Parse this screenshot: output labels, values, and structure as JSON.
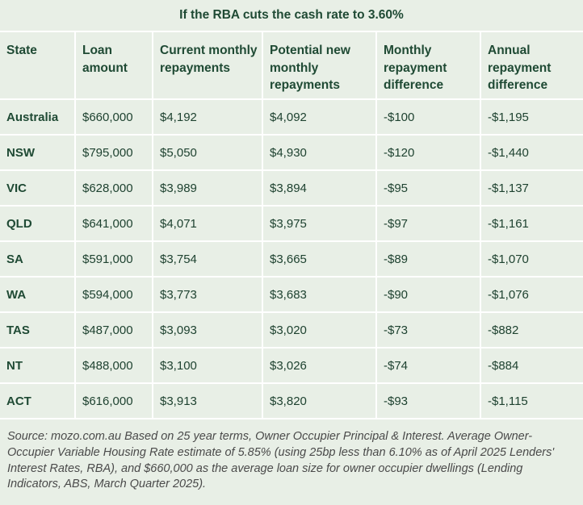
{
  "title": "If the RBA cuts the cash rate to 3.60%",
  "table": {
    "headers": [
      "State",
      "Loan amount",
      "Current monthly repayments",
      "Potential new monthly repayments",
      "Monthly repayment difference",
      "Annual repayment difference"
    ],
    "rows": [
      [
        "Australia",
        "$660,000",
        "$4,192",
        "$4,092",
        "-$100",
        "-$1,195"
      ],
      [
        "NSW",
        "$795,000",
        "$5,050",
        "$4,930",
        "-$120",
        "-$1,440"
      ],
      [
        "VIC",
        "$628,000",
        "$3,989",
        "$3,894",
        "-$95",
        "-$1,137"
      ],
      [
        "QLD",
        "$641,000",
        "$4,071",
        "$3,975",
        "-$97",
        "-$1,161"
      ],
      [
        "SA",
        "$591,000",
        "$3,754",
        "$3,665",
        "-$89",
        "-$1,070"
      ],
      [
        "WA",
        "$594,000",
        "$3,773",
        "$3,683",
        "-$90",
        "-$1,076"
      ],
      [
        "TAS",
        "$487,000",
        "$3,093",
        "$3,020",
        "-$73",
        "-$882"
      ],
      [
        "NT",
        "$488,000",
        "$3,100",
        "$3,026",
        "-$74",
        "-$884"
      ],
      [
        "ACT",
        "$616,000",
        "$3,913",
        "$3,820",
        "-$93",
        "-$1,115"
      ]
    ]
  },
  "source": "Source: mozo.com.au Based on 25 year terms, Owner Occupier Principal & Interest. Average Owner-Occupier Variable Housing Rate estimate of 5.85% (using 25bp less than 6.10% as of April 2025 Lenders' Interest Rates, RBA), and $660,000 as the average loan size for owner occupier dwellings (Lending Indicators, ABS, March Quarter 2025).",
  "colors": {
    "background": "#e8efe6",
    "text": "#1e4230",
    "divider": "#ffffff",
    "source_text": "#4a4a4a"
  }
}
